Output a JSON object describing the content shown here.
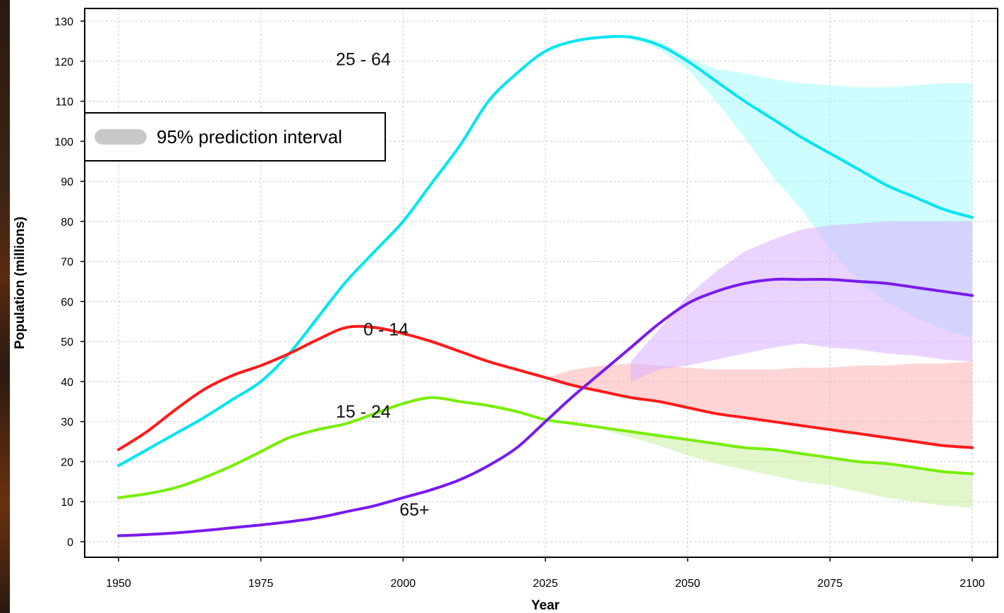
{
  "chart_data": {
    "type": "line",
    "title": "",
    "xlabel": "Year",
    "ylabel": "Population (millions)",
    "xlim": [
      1950,
      2100
    ],
    "ylim": [
      0,
      130
    ],
    "x_ticks": [
      1950,
      1975,
      2000,
      2025,
      2050,
      2075,
      2100
    ],
    "y_ticks": [
      0,
      10,
      20,
      30,
      40,
      50,
      60,
      70,
      80,
      90,
      100,
      110,
      120,
      130
    ],
    "grid": true,
    "legend": {
      "position": "upper-left",
      "entries": [
        "95% prediction interval"
      ],
      "color": "#c8c8c8"
    },
    "series": [
      {
        "name": "25 - 64",
        "color": "#00e5f2",
        "band_color": "#a6fbff",
        "x": [
          1950,
          1955,
          1960,
          1965,
          1970,
          1975,
          1980,
          1985,
          1990,
          1995,
          2000,
          2005,
          2010,
          2015,
          2020,
          2025,
          2030,
          2035,
          2040,
          2045,
          2050,
          2055,
          2060,
          2065,
          2070,
          2075,
          2080,
          2085,
          2090,
          2095,
          2100
        ],
        "values": [
          19,
          23,
          27,
          31,
          35.5,
          40,
          47,
          56,
          65,
          72.5,
          80,
          89.5,
          99,
          110,
          117,
          122.5,
          125,
          126,
          126,
          124,
          120,
          115,
          110,
          105.5,
          101,
          97,
          93,
          89,
          86,
          83,
          81
        ],
        "lower": [
          null,
          null,
          null,
          null,
          null,
          null,
          null,
          null,
          null,
          null,
          null,
          null,
          null,
          null,
          null,
          null,
          null,
          null,
          125.5,
          123,
          118,
          110,
          101,
          91,
          83,
          73,
          65,
          60,
          56,
          53,
          51
        ],
        "upper": [
          null,
          null,
          null,
          null,
          null,
          null,
          null,
          null,
          null,
          null,
          null,
          null,
          null,
          null,
          null,
          null,
          null,
          null,
          126.5,
          125,
          121,
          118,
          117,
          115.5,
          114.5,
          114,
          113.5,
          113.5,
          114,
          114.5,
          114.5
        ],
        "label_year": 1993,
        "label_value": 119
      },
      {
        "name": "0 - 14",
        "color": "#ff1a1a",
        "band_color": "#ffb0b0",
        "x": [
          1950,
          1955,
          1960,
          1965,
          1970,
          1975,
          1980,
          1985,
          1990,
          1995,
          2000,
          2005,
          2010,
          2015,
          2020,
          2025,
          2030,
          2035,
          2040,
          2045,
          2050,
          2055,
          2060,
          2065,
          2070,
          2075,
          2080,
          2085,
          2090,
          2095,
          2100
        ],
        "values": [
          23,
          27.5,
          33,
          38,
          41.5,
          44,
          47,
          50.5,
          53.5,
          53.5,
          52,
          50,
          47.5,
          45,
          43,
          41,
          39,
          37.5,
          36,
          35,
          33.5,
          32,
          31,
          30,
          29,
          28,
          27,
          26,
          25,
          24,
          23.5
        ],
        "lower": [
          null,
          null,
          null,
          null,
          null,
          null,
          null,
          null,
          null,
          null,
          null,
          null,
          null,
          null,
          null,
          null,
          null,
          null,
          null,
          null,
          null,
          null,
          null,
          null,
          null,
          null,
          null,
          null,
          null,
          null,
          null
        ],
        "upper": [
          null,
          null,
          null,
          null,
          null,
          null,
          null,
          null,
          null,
          null,
          null,
          null,
          null,
          null,
          null,
          41,
          43,
          44,
          44.5,
          44,
          43.5,
          43,
          43,
          43,
          43.5,
          43.5,
          44,
          44,
          44.5,
          44.5,
          45
        ],
        "label_year": 1997,
        "label_value": 51.5
      },
      {
        "name": "15 - 24",
        "color": "#77ee00",
        "band_color": "#c8f0a0",
        "x": [
          1950,
          1955,
          1960,
          1965,
          1970,
          1975,
          1980,
          1985,
          1990,
          1995,
          2000,
          2005,
          2010,
          2015,
          2020,
          2025,
          2030,
          2035,
          2040,
          2045,
          2050,
          2055,
          2060,
          2065,
          2070,
          2075,
          2080,
          2085,
          2090,
          2095,
          2100
        ],
        "values": [
          11,
          12,
          13.5,
          16,
          19,
          22.5,
          26,
          28,
          29.5,
          32,
          34.5,
          36,
          35,
          34,
          32.5,
          30.5,
          29.5,
          28.5,
          27.5,
          26.5,
          25.5,
          24.5,
          23.5,
          23,
          22,
          21,
          20,
          19.5,
          18.5,
          17.5,
          17
        ],
        "lower": [
          null,
          null,
          null,
          null,
          null,
          null,
          null,
          null,
          null,
          null,
          null,
          null,
          null,
          null,
          null,
          null,
          null,
          28,
          26,
          24,
          21.5,
          19.5,
          18,
          16.5,
          15,
          14,
          12.5,
          11,
          10,
          9,
          8.5
        ],
        "upper": [
          null,
          null,
          null,
          null,
          null,
          null,
          null,
          null,
          null,
          null,
          null,
          null,
          null,
          null,
          null,
          null,
          null,
          null,
          null,
          null,
          null,
          null,
          null,
          null,
          null,
          null,
          null,
          null,
          null,
          null,
          null
        ],
        "label_year": 1993,
        "label_value": 31
      },
      {
        "name": "65+",
        "color": "#7a1aee",
        "band_color": "#d8b0ff",
        "x": [
          1950,
          1955,
          1960,
          1965,
          1970,
          1975,
          1980,
          1985,
          1990,
          1995,
          2000,
          2005,
          2010,
          2015,
          2020,
          2025,
          2030,
          2035,
          2040,
          2045,
          2050,
          2055,
          2060,
          2065,
          2070,
          2075,
          2080,
          2085,
          2090,
          2095,
          2100
        ],
        "values": [
          1.5,
          1.8,
          2.2,
          2.8,
          3.5,
          4.2,
          5,
          6,
          7.5,
          9,
          11,
          13,
          15.5,
          19,
          23.5,
          30,
          36.5,
          42.5,
          48.5,
          54.5,
          59.5,
          62.5,
          64.5,
          65.5,
          65.5,
          65.5,
          65,
          64.5,
          63.5,
          62.5,
          61.5
        ],
        "lower": [
          null,
          null,
          null,
          null,
          null,
          null,
          null,
          null,
          null,
          null,
          null,
          null,
          null,
          null,
          null,
          null,
          null,
          null,
          40,
          43,
          44,
          45.5,
          47,
          48.5,
          49.5,
          48.5,
          48,
          47,
          46.5,
          45.5,
          45
        ],
        "upper": [
          null,
          null,
          null,
          null,
          null,
          null,
          null,
          null,
          null,
          null,
          null,
          null,
          null,
          null,
          null,
          null,
          null,
          null,
          45,
          53,
          61.5,
          67.5,
          72.5,
          75.5,
          78,
          79,
          79.5,
          80,
          80,
          80,
          80
        ],
        "label_year": 2002,
        "label_value": 6.5
      }
    ]
  }
}
